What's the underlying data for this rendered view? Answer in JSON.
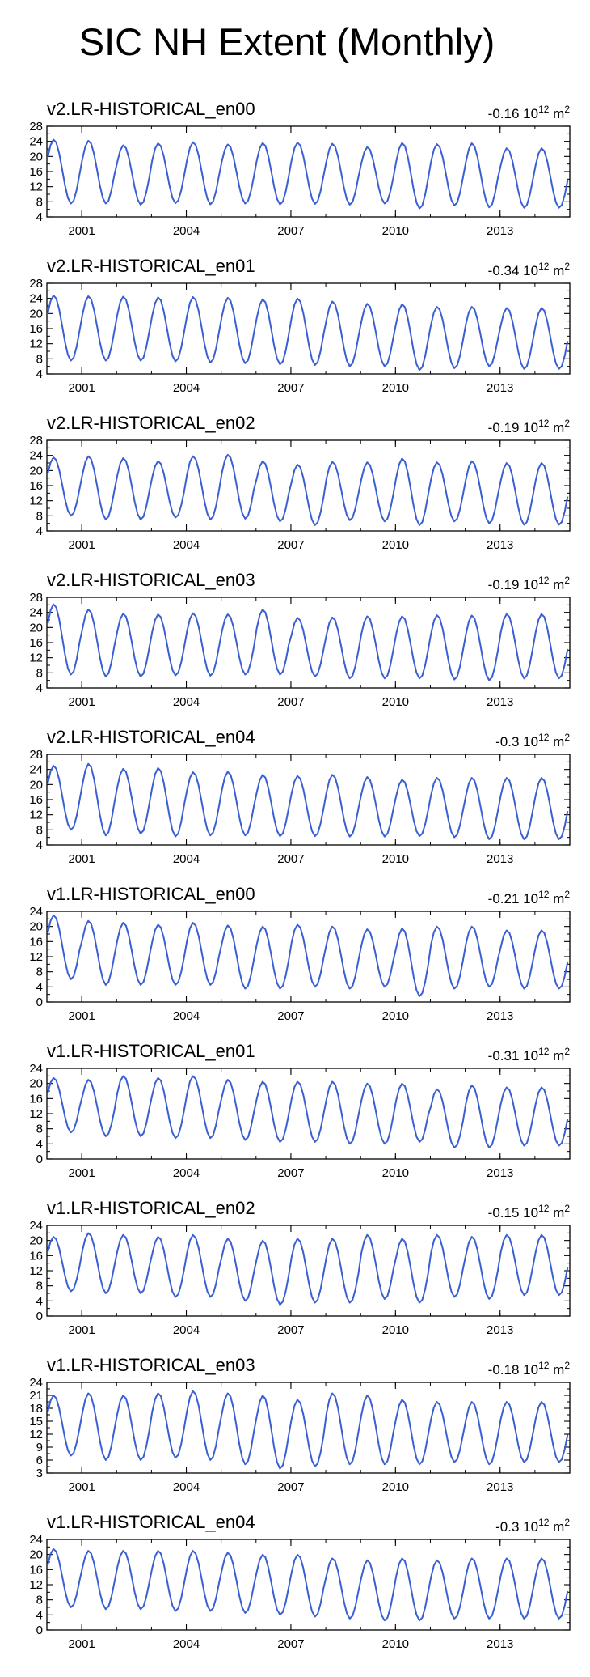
{
  "title": "SIC NH Extent (Monthly)",
  "line_color": "#3a5fd3",
  "x_tick_labels": [
    "2001",
    "2004",
    "2007",
    "2010",
    "2013"
  ],
  "chart_data": [
    {
      "type": "line",
      "title": "v2.LR-HISTORICAL_en00",
      "trend_value": "-0.16",
      "trend_base": "10",
      "trend_exp": "12",
      "trend_unit": "m",
      "trend_unit_exp": "2",
      "xlim": [
        2000,
        2015
      ],
      "xticks": [
        2001,
        2004,
        2007,
        2010,
        2013
      ],
      "ylim": [
        4,
        28
      ],
      "yticks": [
        4,
        8,
        12,
        16,
        20,
        24,
        28
      ],
      "ytick_labels": [
        "4",
        "8",
        "12",
        "16",
        "20",
        "24",
        "28"
      ],
      "peaks": [
        24.5,
        24.2,
        23.0,
        23.5,
        23.8,
        23.2,
        23.6,
        23.7,
        23.4,
        22.5,
        23.6,
        23.3,
        23.5,
        22.2
      ],
      "troughs": [
        7.5,
        7.5,
        7.2,
        7.6,
        7.3,
        7.5,
        7.3,
        7.4,
        7.2,
        7.5,
        6.2,
        7.0,
        6.5,
        6.4
      ]
    },
    {
      "type": "line",
      "title": "v2.LR-HISTORICAL_en01",
      "trend_value": "-0.34",
      "trend_base": "10",
      "trend_exp": "12",
      "trend_unit": "m",
      "trend_unit_exp": "2",
      "xlim": [
        2000,
        2015
      ],
      "xticks": [
        2001,
        2004,
        2007,
        2010,
        2013
      ],
      "ylim": [
        4,
        28
      ],
      "yticks": [
        4,
        8,
        12,
        16,
        20,
        24,
        28
      ],
      "ytick_labels": [
        "4",
        "8",
        "12",
        "16",
        "20",
        "24",
        "28"
      ],
      "peaks": [
        24.8,
        24.6,
        24.5,
        24.3,
        24.4,
        24.2,
        23.8,
        24.0,
        23.2,
        22.6,
        22.5,
        21.8,
        21.8,
        21.5
      ],
      "troughs": [
        7.5,
        7.5,
        7.5,
        7.3,
        7.0,
        6.8,
        6.5,
        6.3,
        6.0,
        6.0,
        5.0,
        5.5,
        6.0,
        5.3
      ]
    },
    {
      "type": "line",
      "title": "v2.LR-HISTORICAL_en02",
      "trend_value": "-0.19",
      "trend_base": "10",
      "trend_exp": "12",
      "trend_unit": "m",
      "trend_unit_exp": "2",
      "xlim": [
        2000,
        2015
      ],
      "xticks": [
        2001,
        2004,
        2007,
        2010,
        2013
      ],
      "ylim": [
        4,
        28
      ],
      "yticks": [
        4,
        8,
        12,
        16,
        20,
        24,
        28
      ],
      "ytick_labels": [
        "4",
        "8",
        "12",
        "16",
        "20",
        "24",
        "28"
      ],
      "peaks": [
        23.5,
        23.8,
        23.3,
        22.5,
        23.8,
        24.2,
        22.5,
        21.6,
        22.3,
        22.2,
        23.2,
        22.2,
        22.5,
        22.0
      ],
      "troughs": [
        8.0,
        7.0,
        7.0,
        7.5,
        7.0,
        7.2,
        6.5,
        5.5,
        6.8,
        6.5,
        5.5,
        6.5,
        6.0,
        5.6
      ]
    },
    {
      "type": "line",
      "title": "v2.LR-HISTORICAL_en03",
      "trend_value": "-0.19",
      "trend_base": "10",
      "trend_exp": "12",
      "trend_unit": "m",
      "trend_unit_exp": "2",
      "xlim": [
        2000,
        2015
      ],
      "xticks": [
        2001,
        2004,
        2007,
        2010,
        2013
      ],
      "ylim": [
        4,
        28
      ],
      "yticks": [
        4,
        8,
        12,
        16,
        20,
        24,
        28
      ],
      "ytick_labels": [
        "4",
        "8",
        "12",
        "16",
        "20",
        "24",
        "28"
      ],
      "peaks": [
        26.2,
        24.8,
        23.7,
        23.5,
        23.8,
        23.5,
        24.8,
        22.6,
        22.7,
        23.0,
        23.0,
        23.3,
        23.2,
        23.6
      ],
      "troughs": [
        7.5,
        7.0,
        7.0,
        7.3,
        7.2,
        7.5,
        7.5,
        7.0,
        6.5,
        6.5,
        6.5,
        6.2,
        6.0,
        6.5
      ]
    },
    {
      "type": "line",
      "title": "v2.LR-HISTORICAL_en04",
      "trend_value": "-0.3",
      "trend_base": "10",
      "trend_exp": "12",
      "trend_unit": "m",
      "trend_unit_exp": "2",
      "xlim": [
        2000,
        2015
      ],
      "xticks": [
        2001,
        2004,
        2007,
        2010,
        2013
      ],
      "ylim": [
        4,
        28
      ],
      "yticks": [
        4,
        8,
        12,
        16,
        20,
        24,
        28
      ],
      "ytick_labels": [
        "4",
        "8",
        "12",
        "16",
        "20",
        "24",
        "28"
      ],
      "peaks": [
        25.0,
        25.5,
        24.2,
        24.4,
        23.3,
        23.4,
        22.6,
        22.3,
        22.6,
        22.0,
        21.3,
        21.8,
        21.8,
        21.8
      ],
      "troughs": [
        8.0,
        6.5,
        7.0,
        6.2,
        6.5,
        6.5,
        6.3,
        6.3,
        6.2,
        6.2,
        6.3,
        6.0,
        5.5,
        5.5
      ]
    },
    {
      "type": "line",
      "title": "v1.LR-HISTORICAL_en00",
      "trend_value": "-0.21",
      "trend_base": "10",
      "trend_exp": "12",
      "trend_unit": "m",
      "trend_unit_exp": "2",
      "xlim": [
        2000,
        2015
      ],
      "xticks": [
        2001,
        2004,
        2007,
        2010,
        2013
      ],
      "ylim": [
        0,
        24
      ],
      "yticks": [
        0,
        4,
        8,
        12,
        16,
        20,
        24
      ],
      "ytick_labels": [
        "0",
        "4",
        "8",
        "12",
        "16",
        "20",
        "24"
      ],
      "peaks": [
        23.0,
        21.5,
        21.0,
        20.5,
        21.0,
        20.3,
        20.0,
        20.5,
        20.0,
        19.3,
        19.5,
        20.0,
        20.0,
        19.0
      ],
      "troughs": [
        6.0,
        4.5,
        4.5,
        4.5,
        4.5,
        3.5,
        3.5,
        4.0,
        3.5,
        4.0,
        1.5,
        3.5,
        4.0,
        3.5
      ]
    },
    {
      "type": "line",
      "title": "v1.LR-HISTORICAL_en01",
      "trend_value": "-0.31",
      "trend_base": "10",
      "trend_exp": "12",
      "trend_unit": "m",
      "trend_unit_exp": "2",
      "xlim": [
        2000,
        2015
      ],
      "xticks": [
        2001,
        2004,
        2007,
        2010,
        2013
      ],
      "ylim": [
        0,
        24
      ],
      "yticks": [
        0,
        4,
        8,
        12,
        16,
        20,
        24
      ],
      "ytick_labels": [
        "0",
        "4",
        "8",
        "12",
        "16",
        "20",
        "24"
      ],
      "peaks": [
        21.5,
        21.0,
        22.0,
        21.5,
        22.0,
        21.0,
        20.5,
        20.5,
        20.5,
        20.0,
        20.0,
        18.5,
        19.5,
        19.0
      ],
      "troughs": [
        7.0,
        6.0,
        6.0,
        5.5,
        5.5,
        5.0,
        4.5,
        4.5,
        4.0,
        4.0,
        4.5,
        3.0,
        3.0,
        3.5
      ]
    },
    {
      "type": "line",
      "title": "v1.LR-HISTORICAL_en02",
      "trend_value": "-0.15",
      "trend_base": "10",
      "trend_exp": "12",
      "trend_unit": "m",
      "trend_unit_exp": "2",
      "xlim": [
        2000,
        2015
      ],
      "xticks": [
        2001,
        2004,
        2007,
        2010,
        2013
      ],
      "ylim": [
        0,
        24
      ],
      "yticks": [
        0,
        4,
        8,
        12,
        16,
        20,
        24
      ],
      "ytick_labels": [
        "0",
        "4",
        "8",
        "12",
        "16",
        "20",
        "24"
      ],
      "peaks": [
        21.0,
        22.0,
        21.5,
        21.0,
        21.5,
        20.5,
        20.0,
        20.5,
        20.5,
        21.5,
        20.5,
        21.5,
        21.0,
        21.5
      ],
      "troughs": [
        6.5,
        6.0,
        6.0,
        5.0,
        5.0,
        4.0,
        3.0,
        3.5,
        3.5,
        4.5,
        3.5,
        5.0,
        4.5,
        5.5
      ]
    },
    {
      "type": "line",
      "title": "v1.LR-HISTORICAL_en03",
      "trend_value": "-0.18",
      "trend_base": "10",
      "trend_exp": "12",
      "trend_unit": "m",
      "trend_unit_exp": "2",
      "xlim": [
        2000,
        2015
      ],
      "xticks": [
        2001,
        2004,
        2007,
        2010,
        2013
      ],
      "ylim": [
        3,
        24
      ],
      "yticks": [
        3,
        6,
        9,
        12,
        15,
        18,
        21,
        24
      ],
      "ytick_labels": [
        "3",
        "6",
        "9",
        "12",
        "15",
        "18",
        "21",
        "24"
      ],
      "peaks": [
        21.0,
        21.5,
        21.0,
        21.5,
        22.0,
        21.5,
        21.0,
        20.0,
        21.5,
        21.0,
        20.0,
        19.5,
        19.5,
        19.5
      ],
      "troughs": [
        7.0,
        6.0,
        6.0,
        6.5,
        6.0,
        5.0,
        4.0,
        4.5,
        5.0,
        5.0,
        5.0,
        5.5,
        5.0,
        5.5
      ]
    },
    {
      "type": "line",
      "title": "v1.LR-HISTORICAL_en04",
      "trend_value": "-0.3",
      "trend_base": "10",
      "trend_exp": "12",
      "trend_unit": "m",
      "trend_unit_exp": "2",
      "xlim": [
        2000,
        2015
      ],
      "xticks": [
        2001,
        2004,
        2007,
        2010,
        2013
      ],
      "ylim": [
        0,
        24
      ],
      "yticks": [
        0,
        4,
        8,
        12,
        16,
        20,
        24
      ],
      "ytick_labels": [
        "0",
        "4",
        "8",
        "12",
        "16",
        "20",
        "24"
      ],
      "peaks": [
        21.5,
        21.0,
        21.0,
        21.0,
        21.0,
        20.5,
        20.0,
        20.0,
        19.0,
        18.5,
        19.0,
        18.5,
        19.0,
        19.0
      ],
      "troughs": [
        6.0,
        5.5,
        5.5,
        5.0,
        5.0,
        4.5,
        4.0,
        3.5,
        3.0,
        2.5,
        2.5,
        3.0,
        3.0,
        3.0
      ]
    }
  ]
}
